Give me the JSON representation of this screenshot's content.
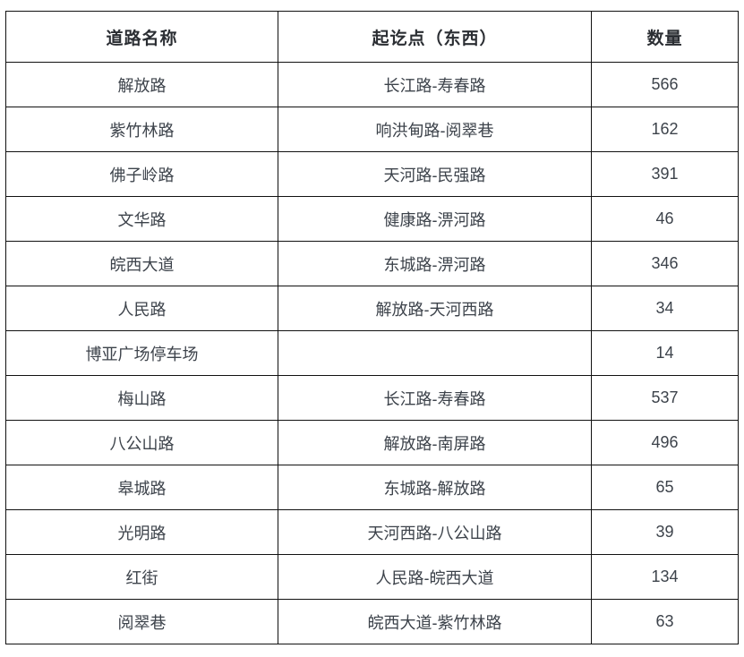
{
  "table": {
    "columns": [
      "道路名称",
      "起讫点（东西）",
      "数量"
    ],
    "rows": [
      {
        "road": "解放路",
        "segment": "长江路-寿春路",
        "count": "566"
      },
      {
        "road": "紫竹林路",
        "segment": "响洪甸路-阅翠巷",
        "count": "162"
      },
      {
        "road": "佛子岭路",
        "segment": "天河路-民强路",
        "count": "391"
      },
      {
        "road": "文华路",
        "segment": "健康路-淠河路",
        "count": "46"
      },
      {
        "road": "皖西大道",
        "segment": "东城路-淠河路",
        "count": "346"
      },
      {
        "road": "人民路",
        "segment": "解放路-天河西路",
        "count": "34"
      },
      {
        "road": "博亚广场停车场",
        "segment": "",
        "count": "14"
      },
      {
        "road": "梅山路",
        "segment": "长江路-寿春路",
        "count": "537"
      },
      {
        "road": "八公山路",
        "segment": "解放路-南屏路",
        "count": "496"
      },
      {
        "road": "皋城路",
        "segment": "东城路-解放路",
        "count": "65"
      },
      {
        "road": "光明路",
        "segment": "天河西路-八公山路",
        "count": "39"
      },
      {
        "road": "红街",
        "segment": "人民路-皖西大道",
        "count": "134"
      },
      {
        "road": "阅翠巷",
        "segment": "皖西大道-紫竹林路",
        "count": "63"
      }
    ]
  }
}
